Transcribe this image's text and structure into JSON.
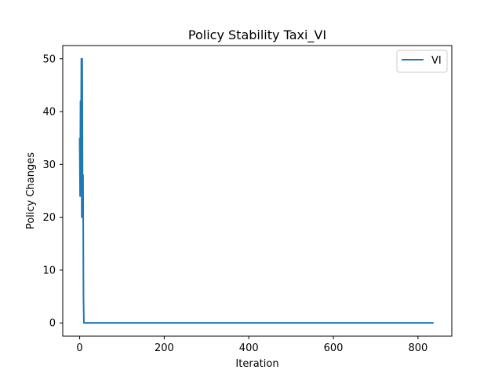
{
  "chart_data": {
    "type": "line",
    "title": "Policy Stability Taxi_VI",
    "xlabel": "Iteration",
    "ylabel": "Policy Changes",
    "xlim": [
      -40,
      880
    ],
    "ylim": [
      -2.5,
      52.5
    ],
    "xticks": [
      0,
      200,
      400,
      600,
      800
    ],
    "yticks": [
      0,
      10,
      20,
      30,
      40,
      50
    ],
    "grid": false,
    "legend_position": "top-right",
    "series": [
      {
        "name": "VI",
        "color": "#1f77b4",
        "x": [
          0,
          1,
          2,
          3,
          4,
          5,
          6,
          7,
          8,
          9,
          10,
          11,
          837
        ],
        "y": [
          35,
          24,
          42,
          29,
          50,
          20,
          50,
          22,
          28,
          5,
          0,
          0,
          0
        ]
      }
    ]
  }
}
